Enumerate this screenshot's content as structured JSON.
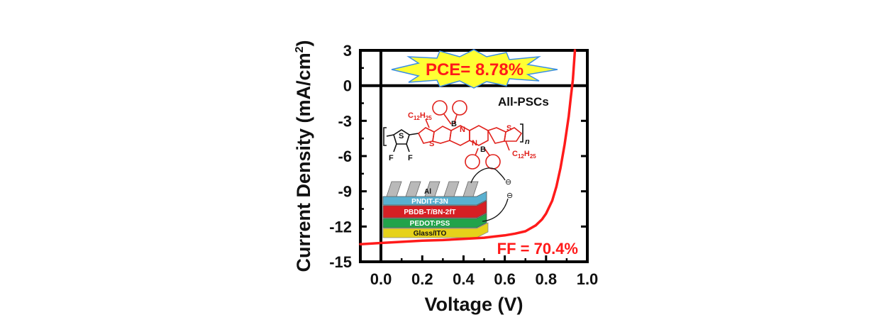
{
  "chart_data": {
    "type": "line",
    "xlabel": "Voltage (V)",
    "ylabel_main": "Current Density (mA/cm",
    "ylabel_sup": "2",
    "ylabel_close": ")",
    "xlim": [
      -0.1,
      1.0
    ],
    "ylim": [
      -15,
      3
    ],
    "x_ticks": [
      "0.0",
      "0.2",
      "0.4",
      "0.6",
      "0.8",
      "1.0"
    ],
    "x_tick_values": [
      0.0,
      0.2,
      0.4,
      0.6,
      0.8,
      1.0
    ],
    "y_ticks": [
      "3",
      "0",
      "-3",
      "-6",
      "-9",
      "-12",
      "-15"
    ],
    "y_tick_values": [
      3,
      0,
      -3,
      -6,
      -9,
      -12,
      -15
    ],
    "series": [
      {
        "color": "#ff1a1a",
        "x": [
          -0.1,
          0.0,
          0.1,
          0.2,
          0.3,
          0.4,
          0.5,
          0.55,
          0.6,
          0.65,
          0.7,
          0.75,
          0.78,
          0.8,
          0.83,
          0.85,
          0.87,
          0.89,
          0.91,
          0.92,
          0.93,
          0.94
        ],
        "y": [
          -13.5,
          -13.4,
          -13.3,
          -13.2,
          -13.15,
          -13.05,
          -12.95,
          -12.85,
          -12.75,
          -12.6,
          -12.4,
          -11.9,
          -11.4,
          -10.9,
          -9.8,
          -8.6,
          -7.0,
          -5.0,
          -2.6,
          -1.0,
          0.5,
          3.0
        ]
      }
    ],
    "annotations": {
      "pce": "PCE= 8.78%",
      "ff": "FF = 70.4%",
      "all_pscs": "All-PSCs"
    },
    "colors": {
      "curve": "#ff1a1a",
      "burst_fill": "#ffff33",
      "burst_stroke": "#3a8ee6",
      "annotation_text": "#ff1a1a",
      "molecule": "#e0201b"
    }
  },
  "inset": {
    "molecule_labels": {
      "alkyl_sub_top": "C",
      "alkyl_num_top": "12",
      "alkyl_h_top": "H",
      "alkyl_hnum_top": "25",
      "alkyl_sub_bot": "C",
      "alkyl_num_bot": "12",
      "alkyl_h_bot": "H",
      "alkyl_hnum_bot": "25",
      "boron": "B",
      "nitrogen": "N",
      "sulfur": "S",
      "fluorine": "F",
      "repeat": "n"
    },
    "device_layers": [
      "Al",
      "PNDIT-F3N",
      "PBDB-T/BN-2fT",
      "PEDOT:PSS",
      "Glass/ITO"
    ],
    "electrode_symbol": "⊖"
  }
}
